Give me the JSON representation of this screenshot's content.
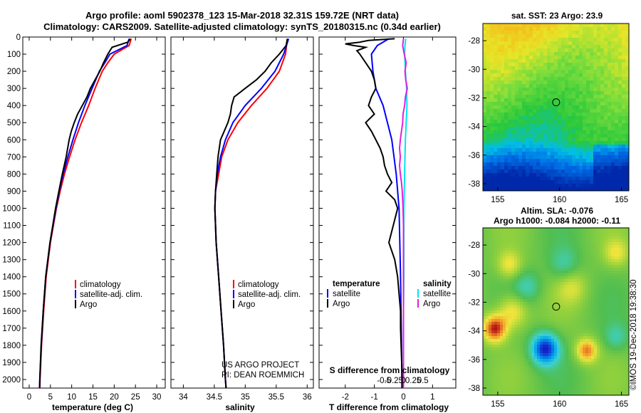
{
  "title": {
    "line1": "Argo profile: aoml 5902378_123 15-Mar-2018 32.31S 159.72E (NRT data)",
    "line2": "Climatology: CARS2009. Satellite-adjusted climatology: synTS_20180315.nc (0.34d earlier)"
  },
  "colors": {
    "climatology": "#ff0000",
    "satellite": "#0000ff",
    "argo": "#000000",
    "sat_salinity": "#00e5f0",
    "argo_salinity": "#e020e0"
  },
  "chart_data": [
    {
      "type": "line",
      "name": "temperature",
      "xlabel": "temperature (deg C)",
      "xlim": [
        -1.5,
        32
      ],
      "xticks": [
        0,
        5,
        10,
        15,
        20,
        25,
        30
      ],
      "ylim": [
        0,
        2050
      ],
      "yticks": [
        0,
        100,
        200,
        300,
        400,
        500,
        600,
        700,
        800,
        900,
        1000,
        1100,
        1200,
        1300,
        1400,
        1500,
        1600,
        1700,
        1800,
        1900,
        2000
      ],
      "legend": [
        "climatology",
        "satellite-adj. clim.",
        "Argo"
      ],
      "series": [
        {
          "name": "climatology",
          "depth": [
            10,
            50,
            100,
            150,
            200,
            300,
            400,
            500,
            600,
            700,
            800,
            900,
            1000,
            1200,
            1400,
            1600,
            1800,
            2000,
            2050
          ],
          "values": [
            24.0,
            23.5,
            20.0,
            18.5,
            17.2,
            15.5,
            14.0,
            12.3,
            10.8,
            9.5,
            8.3,
            7.3,
            6.4,
            5.0,
            4.0,
            3.4,
            2.9,
            2.55,
            2.5
          ]
        },
        {
          "name": "satellite-adj. clim.",
          "depth": [
            10,
            50,
            100,
            150,
            200,
            300,
            400,
            500,
            600,
            700,
            800,
            900,
            1000,
            1200,
            1400,
            1600,
            1800,
            2000,
            2050
          ],
          "values": [
            23.5,
            23.0,
            19.0,
            17.8,
            16.5,
            14.8,
            13.1,
            11.6,
            10.3,
            9.1,
            8.0,
            7.1,
            6.3,
            4.9,
            3.9,
            3.3,
            2.85,
            2.5,
            2.45
          ]
        },
        {
          "name": "Argo",
          "depth": [
            10,
            30,
            60,
            100,
            150,
            200,
            250,
            300,
            350,
            400,
            450,
            500,
            550,
            600,
            700,
            800,
            900,
            1000,
            1200,
            1400,
            1600,
            1800,
            2000,
            2050
          ],
          "values": [
            23.8,
            23.2,
            19.5,
            18.5,
            17.5,
            16.6,
            15.5,
            14.4,
            13.6,
            12.5,
            11.4,
            10.6,
            9.9,
            9.4,
            8.7,
            7.8,
            7.0,
            6.2,
            4.9,
            3.9,
            3.3,
            2.8,
            2.5,
            2.45
          ]
        }
      ]
    },
    {
      "type": "line",
      "name": "salinity",
      "xlabel": "salinity",
      "xlim": [
        33.8,
        36.1
      ],
      "xticks": [
        34,
        34.5,
        35,
        35.5,
        36
      ],
      "xtick_labels": [
        "34",
        "34.5",
        "35",
        "35.5",
        "36"
      ],
      "ylim": [
        0,
        2050
      ],
      "legend": [
        "climatology",
        "satellite-adj. clim.",
        "Argo"
      ],
      "annotation": [
        "US ARGO PROJECT",
        "PI: DEAN ROEMMICH"
      ],
      "series": [
        {
          "name": "climatology",
          "depth": [
            10,
            100,
            200,
            300,
            400,
            500,
            600,
            700,
            800,
            900,
            1000,
            1200,
            1400,
            1600,
            1800,
            2000,
            2050
          ],
          "values": [
            35.68,
            35.65,
            35.55,
            35.35,
            35.1,
            34.88,
            34.72,
            34.62,
            34.57,
            34.52,
            34.51,
            34.53,
            34.57,
            34.61,
            34.65,
            34.68,
            34.69
          ]
        },
        {
          "name": "satellite-adj. clim.",
          "depth": [
            10,
            100,
            200,
            300,
            400,
            500,
            600,
            700,
            800,
            900,
            1000,
            1200,
            1400,
            1600,
            1800,
            2000,
            2050
          ],
          "values": [
            35.7,
            35.62,
            35.48,
            35.26,
            35.0,
            34.8,
            34.68,
            34.6,
            34.55,
            34.52,
            34.51,
            34.53,
            34.57,
            34.61,
            34.65,
            34.68,
            34.69
          ]
        },
        {
          "name": "Argo",
          "depth": [
            10,
            50,
            100,
            150,
            200,
            250,
            300,
            350,
            400,
            450,
            500,
            550,
            600,
            700,
            800,
            900,
            1000,
            1200,
            1400,
            1600,
            1800,
            2000,
            2050
          ],
          "values": [
            35.68,
            35.66,
            35.55,
            35.42,
            35.32,
            35.18,
            35.0,
            34.82,
            34.78,
            34.76,
            34.72,
            34.66,
            34.6,
            34.56,
            34.54,
            34.52,
            34.51,
            34.53,
            34.57,
            34.61,
            34.65,
            34.68,
            34.69
          ]
        }
      ]
    },
    {
      "type": "line",
      "name": "difference",
      "xlabel": "T difference from climatology",
      "xlim": [
        -2.9,
        1.8
      ],
      "xticks": [
        -2,
        -1,
        0,
        1
      ],
      "ylim": [
        0,
        2050
      ],
      "legend_left_title": "temperature",
      "legend_right_title": "salinity",
      "legend_left": [
        "satellite",
        "Argo"
      ],
      "legend_right": [
        "satellite",
        "Argo"
      ],
      "s_axis_label": "S difference from climatology",
      "s_ticks": [
        "-0.5",
        "-0.25",
        "0",
        "0.25",
        "0.5"
      ],
      "series": [
        {
          "name": "T satellite",
          "depth": [
            10,
            50,
            100,
            200,
            300,
            400,
            600,
            800,
            1000,
            1400,
            2000,
            2050
          ],
          "values": [
            -0.5,
            -0.9,
            -1.1,
            -1.05,
            -0.95,
            -0.7,
            -0.4,
            -0.25,
            -0.15,
            -0.1,
            -0.05,
            -0.05
          ]
        },
        {
          "name": "T Argo",
          "depth": [
            10,
            20,
            30,
            40,
            50,
            60,
            80,
            100,
            150,
            200,
            250,
            300,
            350,
            400,
            450,
            500,
            550,
            600,
            650,
            700,
            750,
            800,
            850,
            900,
            950,
            1000,
            1100,
            1200,
            1300,
            1400,
            1500,
            1600,
            1700,
            1800,
            1900,
            2000,
            2050
          ],
          "values": [
            -0.3,
            -1.2,
            -1.5,
            -2.0,
            -1.7,
            -1.3,
            -1.6,
            -1.5,
            -1.3,
            -1.1,
            -1.0,
            -0.95,
            -1.1,
            -1.2,
            -1.0,
            -1.3,
            -1.1,
            -0.95,
            -0.8,
            -0.7,
            -0.65,
            -0.55,
            -0.4,
            -0.6,
            -0.3,
            -0.2,
            -0.35,
            -0.5,
            -0.3,
            -0.2,
            -0.15,
            -0.1,
            -0.1,
            -0.08,
            -0.06,
            -0.05,
            -0.05
          ]
        },
        {
          "name": "S satellite",
          "depth": [
            10,
            50,
            100,
            200,
            300,
            400,
            500,
            600,
            700,
            800,
            900,
            1000,
            1200,
            1400,
            1600,
            1800,
            2000,
            2050
          ],
          "values": [
            0.06,
            0.04,
            0.03,
            0.05,
            0.08,
            0.09,
            0.07,
            0.05,
            0.04,
            0.03,
            0.02,
            0.01,
            0.01,
            0.01,
            0.0,
            0.0,
            0.0,
            0.0
          ]
        },
        {
          "name": "S Argo",
          "depth": [
            10,
            50,
            100,
            150,
            200,
            250,
            300,
            350,
            400,
            450,
            500,
            550,
            600,
            650,
            700,
            750,
            800,
            850,
            900,
            1000,
            1100,
            1200,
            1400,
            1600,
            1800,
            2000,
            2050
          ],
          "values": [
            0.0,
            -0.02,
            0.02,
            0.07,
            0.04,
            0.06,
            0.1,
            0.05,
            0.03,
            -0.01,
            -0.02,
            -0.05,
            -0.08,
            -0.1,
            -0.08,
            -0.1,
            -0.08,
            -0.05,
            -0.03,
            -0.01,
            0.0,
            0.0,
            0.0,
            0.0,
            0.0,
            0.0,
            0.0
          ]
        }
      ]
    },
    {
      "type": "heatmap",
      "name": "sst_map",
      "title": "sat. SST: 23 Argo: 23.9",
      "xlim": [
        153.8,
        165.6
      ],
      "ylim": [
        -38.5,
        -26.8
      ],
      "xticks": [
        155,
        160,
        165
      ],
      "yticks": [
        -28,
        -30,
        -32,
        -34,
        -36,
        -38
      ],
      "argo_position": [
        159.72,
        -32.31
      ]
    },
    {
      "type": "heatmap",
      "name": "sla_map",
      "title_line1": "Altim. SLA: -0.076",
      "title_line2": "Argo h1000: -0.084 h2000: -0.11",
      "xlim": [
        153.8,
        165.6
      ],
      "ylim": [
        -38.5,
        -26.8
      ],
      "xticks": [
        155,
        160,
        165
      ],
      "yticks": [
        -28,
        -30,
        -32,
        -34,
        -36,
        -38
      ],
      "argo_position": [
        159.72,
        -32.31
      ]
    }
  ],
  "credit": "©IMOS 19-Dec-2018 19:38:30"
}
